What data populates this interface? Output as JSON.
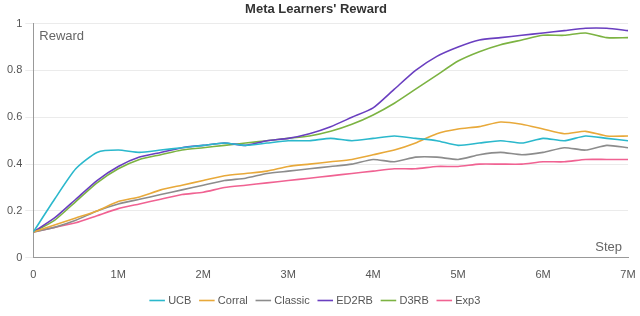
{
  "chart_data": {
    "type": "line",
    "title": "Meta Learners' Reward",
    "x_label": "Step",
    "y_label": "Reward",
    "x": [
      0,
      250000,
      500000,
      750000,
      1000000,
      1250000,
      1500000,
      1750000,
      2000000,
      2250000,
      2500000,
      2750000,
      3000000,
      3250000,
      3500000,
      3750000,
      4000000,
      4250000,
      4500000,
      4750000,
      5000000,
      5250000,
      5500000,
      5750000,
      6000000,
      6250000,
      6500000,
      6750000,
      7000000
    ],
    "series": [
      {
        "name": "UCB",
        "color": "#2bb8cc",
        "values": [
          0.11,
          0.25,
          0.38,
          0.45,
          0.46,
          0.45,
          0.46,
          0.47,
          0.48,
          0.49,
          0.48,
          0.49,
          0.5,
          0.5,
          0.51,
          0.5,
          0.51,
          0.52,
          0.51,
          0.5,
          0.48,
          0.49,
          0.5,
          0.49,
          0.51,
          0.5,
          0.52,
          0.51,
          0.5
        ]
      },
      {
        "name": "Corral",
        "color": "#e8a93a",
        "values": [
          0.11,
          0.14,
          0.17,
          0.2,
          0.24,
          0.26,
          0.29,
          0.31,
          0.33,
          0.35,
          0.36,
          0.37,
          0.39,
          0.4,
          0.41,
          0.42,
          0.44,
          0.46,
          0.49,
          0.53,
          0.55,
          0.56,
          0.58,
          0.57,
          0.55,
          0.53,
          0.54,
          0.52,
          0.52
        ]
      },
      {
        "name": "Classic",
        "color": "#8c8c8c",
        "values": [
          0.11,
          0.13,
          0.16,
          0.2,
          0.23,
          0.25,
          0.27,
          0.29,
          0.31,
          0.33,
          0.34,
          0.36,
          0.37,
          0.38,
          0.39,
          0.4,
          0.42,
          0.41,
          0.43,
          0.43,
          0.42,
          0.44,
          0.45,
          0.44,
          0.45,
          0.47,
          0.46,
          0.48,
          0.47
        ]
      },
      {
        "name": "ED2RB",
        "color": "#6a3fc0",
        "values": [
          0.11,
          0.17,
          0.25,
          0.33,
          0.39,
          0.43,
          0.45,
          0.47,
          0.48,
          0.49,
          0.48,
          0.5,
          0.51,
          0.53,
          0.56,
          0.6,
          0.64,
          0.72,
          0.8,
          0.86,
          0.9,
          0.93,
          0.94,
          0.95,
          0.96,
          0.97,
          0.98,
          0.98,
          0.97
        ]
      },
      {
        "name": "D3RB",
        "color": "#7cb342",
        "values": [
          0.11,
          0.16,
          0.24,
          0.32,
          0.38,
          0.42,
          0.44,
          0.46,
          0.47,
          0.48,
          0.49,
          0.5,
          0.51,
          0.52,
          0.54,
          0.57,
          0.61,
          0.66,
          0.72,
          0.78,
          0.84,
          0.88,
          0.91,
          0.93,
          0.95,
          0.95,
          0.96,
          0.94,
          0.94
        ]
      },
      {
        "name": "Exp3",
        "color": "#f06292",
        "values": [
          0.11,
          0.13,
          0.15,
          0.18,
          0.21,
          0.23,
          0.25,
          0.27,
          0.28,
          0.3,
          0.31,
          0.32,
          0.33,
          0.34,
          0.35,
          0.36,
          0.37,
          0.38,
          0.38,
          0.39,
          0.39,
          0.4,
          0.4,
          0.4,
          0.41,
          0.41,
          0.42,
          0.42,
          0.42
        ]
      }
    ],
    "xlim": [
      0,
      7000000
    ],
    "xticks": [
      0,
      {
        "value": 1000000,
        "label": "1M"
      },
      {
        "value": 2000000,
        "label": "2M"
      },
      {
        "value": 3000000,
        "label": "3M"
      },
      {
        "value": 4000000,
        "label": "4M"
      },
      {
        "value": 5000000,
        "label": "5M"
      },
      {
        "value": 6000000,
        "label": "6M"
      },
      {
        "value": 7000000,
        "label": "7M"
      }
    ],
    "ylim": [
      0,
      1
    ],
    "yticks": [
      0,
      0.2,
      0.4,
      0.6,
      0.8,
      1
    ],
    "grid": true,
    "legend": "bottom"
  }
}
